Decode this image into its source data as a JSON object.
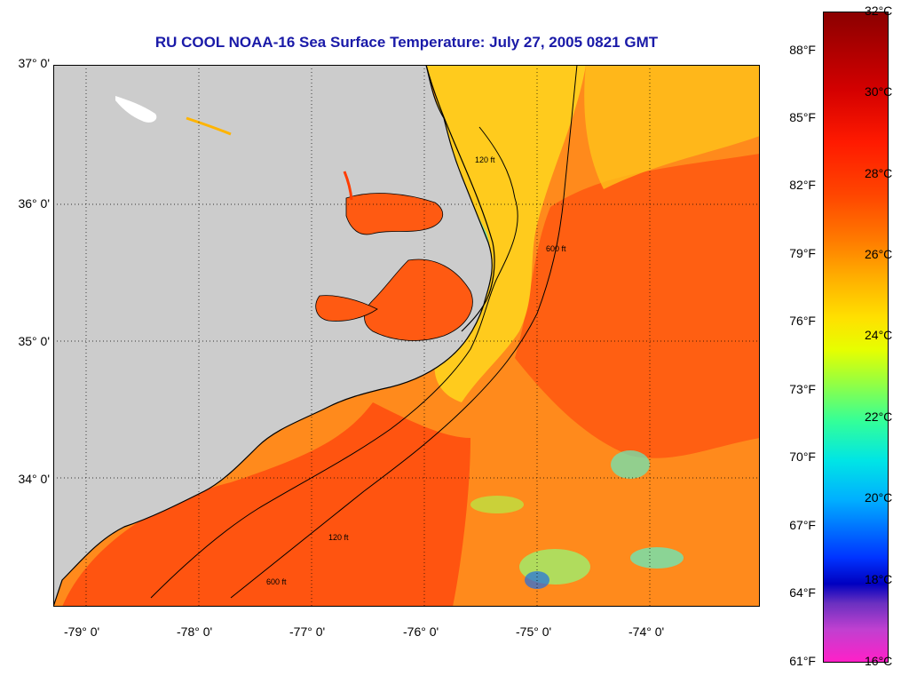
{
  "title": "RU COOL  NOAA-16  Sea Surface Temperature:  July 27, 2005 0821 GMT",
  "map": {
    "lat_labels": [
      "37° 0'",
      "36° 0'",
      "35° 0'",
      "34° 0'"
    ],
    "lon_labels": [
      "-79° 0'",
      "-78° 0'",
      "-77° 0'",
      "-76° 0'",
      "-75° 0'",
      "-74° 0'"
    ],
    "contour_labels": [
      "120 ft",
      "600 ft"
    ],
    "colors": {
      "land": "#cccccc",
      "ocean_warm": "#ff5a14",
      "ocean_mid": "#ff8c1a",
      "shelf": "#ffd21e",
      "cool": "#6ee6b4"
    }
  },
  "colorbar": {
    "fahrenheit": [
      "88°F",
      "85°F",
      "82°F",
      "79°F",
      "76°F",
      "73°F",
      "70°F",
      "67°F",
      "64°F",
      "61°F"
    ],
    "celsius": [
      "32°C",
      "30°C",
      "28°C",
      "26°C",
      "24°C",
      "22°C",
      "20°C",
      "18°C",
      "16°C"
    ]
  }
}
